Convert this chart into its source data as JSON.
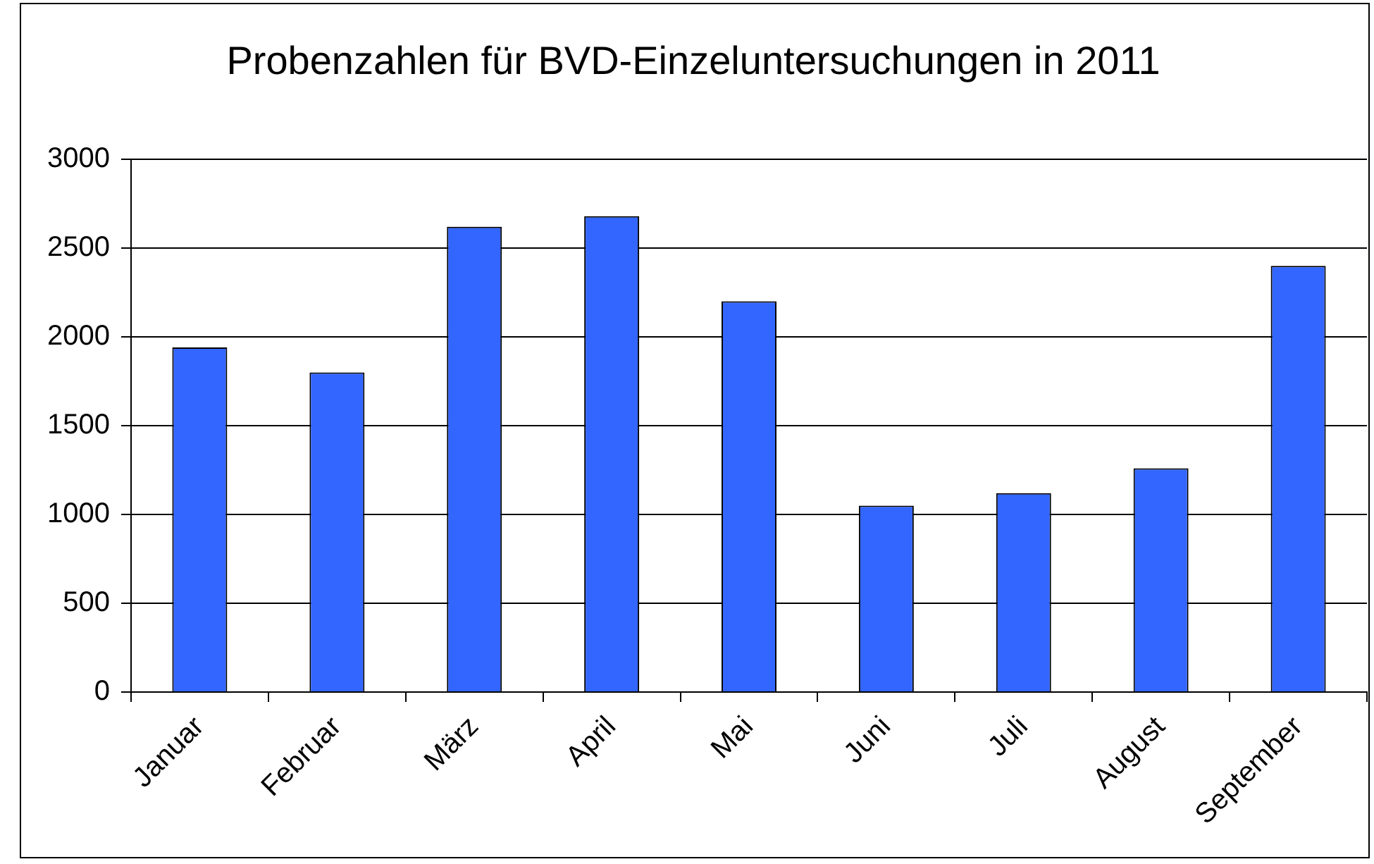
{
  "chart_data": {
    "type": "bar",
    "title": "Probenzahlen für BVD-Einzeluntersuchungen in 2011",
    "categories": [
      "Januar",
      "Februar",
      "März",
      "April",
      "Mai",
      "Juni",
      "Juli",
      "August",
      "September"
    ],
    "values": [
      1940,
      1800,
      2620,
      2680,
      2200,
      1050,
      1120,
      1260,
      2400
    ],
    "color": "#3366ff",
    "ylim": [
      0,
      3000
    ],
    "yticks": [
      0,
      500,
      1000,
      1500,
      2000,
      2500,
      3000
    ],
    "grid": "y"
  }
}
